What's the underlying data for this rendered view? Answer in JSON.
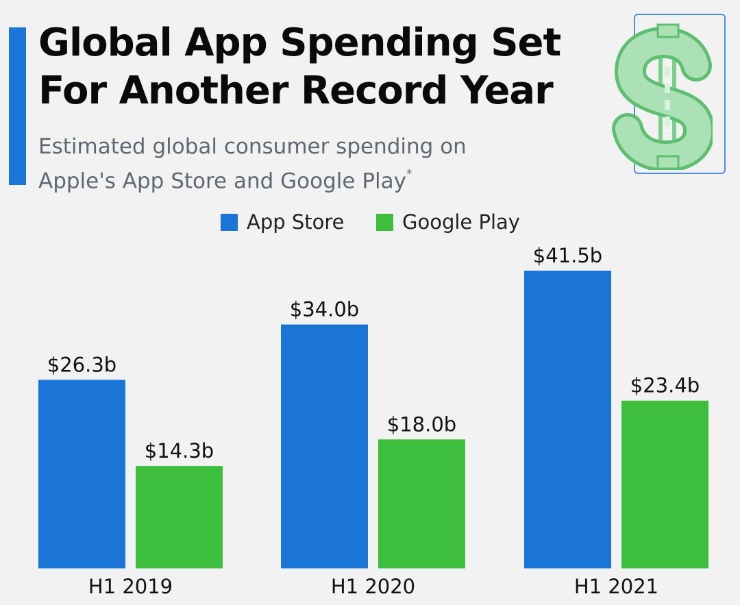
{
  "header": {
    "title_line1": "Global App Spending Set",
    "title_line2": "For Another Record Year",
    "subtitle_line1": "Estimated global consumer spending on",
    "subtitle_line2": "Apple's App Store and Google Play",
    "subtitle_footnote_mark": "*"
  },
  "decoration": {
    "icon": "dollar-sign-icon",
    "color": "#a8ddb0"
  },
  "colors": {
    "accent": "#1a75d6",
    "app_store": "#1a75d6",
    "google_play": "#3dbe3d"
  },
  "chart_data": {
    "type": "bar",
    "categories": [
      "H1 2019",
      "H1 2020",
      "H1 2021"
    ],
    "series": [
      {
        "name": "App Store",
        "values": [
          26.3,
          34.0,
          41.5
        ],
        "labels": [
          "$26.3b",
          "$34.0b",
          "$41.5b"
        ],
        "color": "#1a75d6"
      },
      {
        "name": "Google Play",
        "values": [
          14.3,
          18.0,
          23.4
        ],
        "labels": [
          "$14.3b",
          "$18.0b",
          "$23.4b"
        ],
        "color": "#3dbe3d"
      }
    ],
    "legend_position": "top-center",
    "grid": false
  }
}
